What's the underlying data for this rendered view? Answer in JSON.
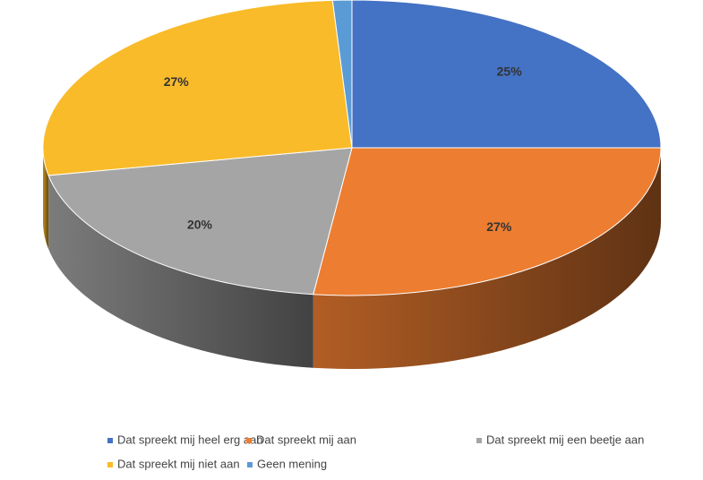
{
  "chart_data": {
    "type": "pie",
    "categories": [
      "Dat spreekt mij heel erg aan",
      "Dat spreekt mij aan",
      "Dat spreekt mij een beetje aan",
      "Dat spreekt mij niet aan",
      "Geen mening"
    ],
    "values": [
      25,
      27,
      20,
      27,
      1
    ],
    "value_labels": [
      "25%",
      "27%",
      "20%",
      "27%",
      null
    ],
    "colors": [
      "#4472c4",
      "#ed7d31",
      "#a5a5a5",
      "#f9bb2a",
      "#5b9bd5"
    ],
    "legend": "bottom"
  }
}
